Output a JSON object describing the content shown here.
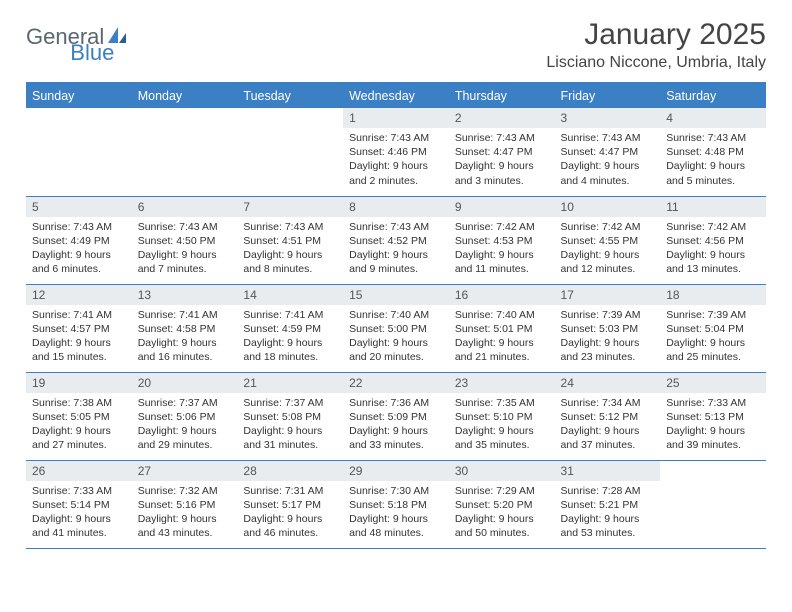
{
  "logo": {
    "text_a": "General",
    "text_b": "Blue"
  },
  "title": "January 2025",
  "location": "Lisciano Niccone, Umbria, Italy",
  "colors": {
    "brand_blue": "#3b7fc4",
    "daynum_bg": "#e9ecef",
    "text": "#333333",
    "logo_gray": "#5a6670"
  },
  "days_of_week": [
    "Sunday",
    "Monday",
    "Tuesday",
    "Wednesday",
    "Thursday",
    "Friday",
    "Saturday"
  ],
  "weeks": [
    [
      {
        "n": "",
        "sr": "",
        "ss": "",
        "dl": ""
      },
      {
        "n": "",
        "sr": "",
        "ss": "",
        "dl": ""
      },
      {
        "n": "",
        "sr": "",
        "ss": "",
        "dl": ""
      },
      {
        "n": "1",
        "sr": "Sunrise: 7:43 AM",
        "ss": "Sunset: 4:46 PM",
        "dl": "Daylight: 9 hours and 2 minutes."
      },
      {
        "n": "2",
        "sr": "Sunrise: 7:43 AM",
        "ss": "Sunset: 4:47 PM",
        "dl": "Daylight: 9 hours and 3 minutes."
      },
      {
        "n": "3",
        "sr": "Sunrise: 7:43 AM",
        "ss": "Sunset: 4:47 PM",
        "dl": "Daylight: 9 hours and 4 minutes."
      },
      {
        "n": "4",
        "sr": "Sunrise: 7:43 AM",
        "ss": "Sunset: 4:48 PM",
        "dl": "Daylight: 9 hours and 5 minutes."
      }
    ],
    [
      {
        "n": "5",
        "sr": "Sunrise: 7:43 AM",
        "ss": "Sunset: 4:49 PM",
        "dl": "Daylight: 9 hours and 6 minutes."
      },
      {
        "n": "6",
        "sr": "Sunrise: 7:43 AM",
        "ss": "Sunset: 4:50 PM",
        "dl": "Daylight: 9 hours and 7 minutes."
      },
      {
        "n": "7",
        "sr": "Sunrise: 7:43 AM",
        "ss": "Sunset: 4:51 PM",
        "dl": "Daylight: 9 hours and 8 minutes."
      },
      {
        "n": "8",
        "sr": "Sunrise: 7:43 AM",
        "ss": "Sunset: 4:52 PM",
        "dl": "Daylight: 9 hours and 9 minutes."
      },
      {
        "n": "9",
        "sr": "Sunrise: 7:42 AM",
        "ss": "Sunset: 4:53 PM",
        "dl": "Daylight: 9 hours and 11 minutes."
      },
      {
        "n": "10",
        "sr": "Sunrise: 7:42 AM",
        "ss": "Sunset: 4:55 PM",
        "dl": "Daylight: 9 hours and 12 minutes."
      },
      {
        "n": "11",
        "sr": "Sunrise: 7:42 AM",
        "ss": "Sunset: 4:56 PM",
        "dl": "Daylight: 9 hours and 13 minutes."
      }
    ],
    [
      {
        "n": "12",
        "sr": "Sunrise: 7:41 AM",
        "ss": "Sunset: 4:57 PM",
        "dl": "Daylight: 9 hours and 15 minutes."
      },
      {
        "n": "13",
        "sr": "Sunrise: 7:41 AM",
        "ss": "Sunset: 4:58 PM",
        "dl": "Daylight: 9 hours and 16 minutes."
      },
      {
        "n": "14",
        "sr": "Sunrise: 7:41 AM",
        "ss": "Sunset: 4:59 PM",
        "dl": "Daylight: 9 hours and 18 minutes."
      },
      {
        "n": "15",
        "sr": "Sunrise: 7:40 AM",
        "ss": "Sunset: 5:00 PM",
        "dl": "Daylight: 9 hours and 20 minutes."
      },
      {
        "n": "16",
        "sr": "Sunrise: 7:40 AM",
        "ss": "Sunset: 5:01 PM",
        "dl": "Daylight: 9 hours and 21 minutes."
      },
      {
        "n": "17",
        "sr": "Sunrise: 7:39 AM",
        "ss": "Sunset: 5:03 PM",
        "dl": "Daylight: 9 hours and 23 minutes."
      },
      {
        "n": "18",
        "sr": "Sunrise: 7:39 AM",
        "ss": "Sunset: 5:04 PM",
        "dl": "Daylight: 9 hours and 25 minutes."
      }
    ],
    [
      {
        "n": "19",
        "sr": "Sunrise: 7:38 AM",
        "ss": "Sunset: 5:05 PM",
        "dl": "Daylight: 9 hours and 27 minutes."
      },
      {
        "n": "20",
        "sr": "Sunrise: 7:37 AM",
        "ss": "Sunset: 5:06 PM",
        "dl": "Daylight: 9 hours and 29 minutes."
      },
      {
        "n": "21",
        "sr": "Sunrise: 7:37 AM",
        "ss": "Sunset: 5:08 PM",
        "dl": "Daylight: 9 hours and 31 minutes."
      },
      {
        "n": "22",
        "sr": "Sunrise: 7:36 AM",
        "ss": "Sunset: 5:09 PM",
        "dl": "Daylight: 9 hours and 33 minutes."
      },
      {
        "n": "23",
        "sr": "Sunrise: 7:35 AM",
        "ss": "Sunset: 5:10 PM",
        "dl": "Daylight: 9 hours and 35 minutes."
      },
      {
        "n": "24",
        "sr": "Sunrise: 7:34 AM",
        "ss": "Sunset: 5:12 PM",
        "dl": "Daylight: 9 hours and 37 minutes."
      },
      {
        "n": "25",
        "sr": "Sunrise: 7:33 AM",
        "ss": "Sunset: 5:13 PM",
        "dl": "Daylight: 9 hours and 39 minutes."
      }
    ],
    [
      {
        "n": "26",
        "sr": "Sunrise: 7:33 AM",
        "ss": "Sunset: 5:14 PM",
        "dl": "Daylight: 9 hours and 41 minutes."
      },
      {
        "n": "27",
        "sr": "Sunrise: 7:32 AM",
        "ss": "Sunset: 5:16 PM",
        "dl": "Daylight: 9 hours and 43 minutes."
      },
      {
        "n": "28",
        "sr": "Sunrise: 7:31 AM",
        "ss": "Sunset: 5:17 PM",
        "dl": "Daylight: 9 hours and 46 minutes."
      },
      {
        "n": "29",
        "sr": "Sunrise: 7:30 AM",
        "ss": "Sunset: 5:18 PM",
        "dl": "Daylight: 9 hours and 48 minutes."
      },
      {
        "n": "30",
        "sr": "Sunrise: 7:29 AM",
        "ss": "Sunset: 5:20 PM",
        "dl": "Daylight: 9 hours and 50 minutes."
      },
      {
        "n": "31",
        "sr": "Sunrise: 7:28 AM",
        "ss": "Sunset: 5:21 PM",
        "dl": "Daylight: 9 hours and 53 minutes."
      },
      {
        "n": "",
        "sr": "",
        "ss": "",
        "dl": ""
      }
    ]
  ]
}
